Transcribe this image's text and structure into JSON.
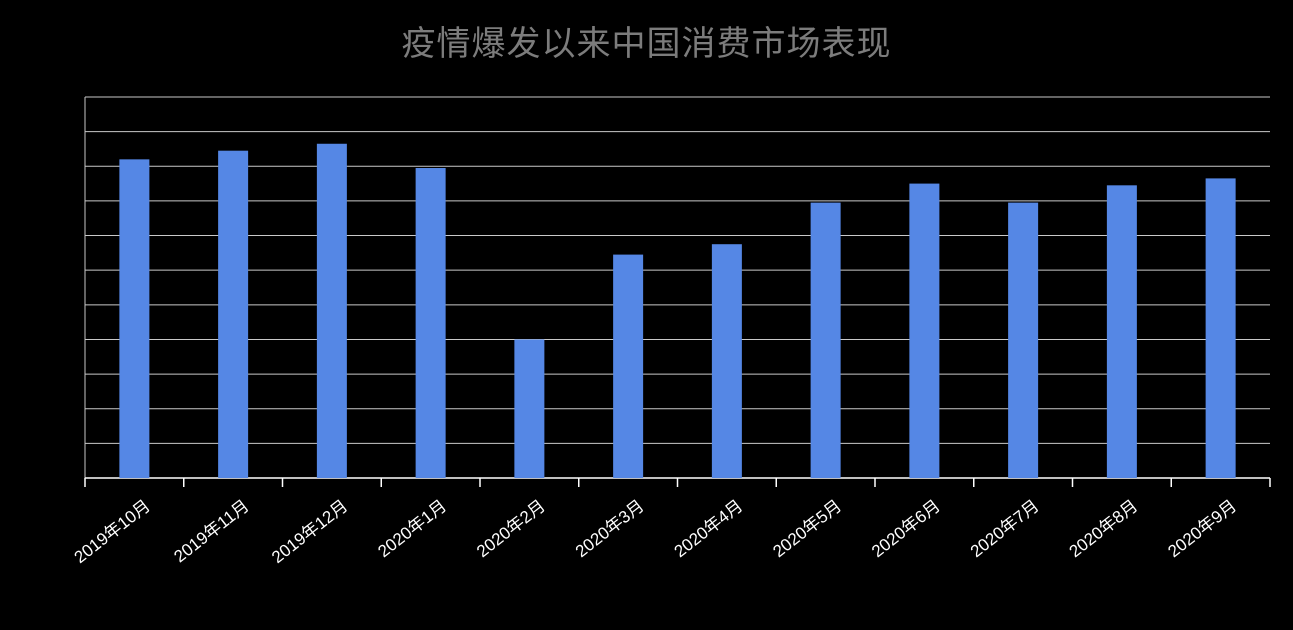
{
  "page": {
    "background": "#000000"
  },
  "chart_data": {
    "type": "bar",
    "title": "疫情爆发以来中国消费市场表现",
    "categories": [
      "2019年10月",
      "2019年11月",
      "2019年12月",
      "2020年1月",
      "2020年2月",
      "2020年3月",
      "2020年4月",
      "2020年5月",
      "2020年6月",
      "2020年7月",
      "2020年8月",
      "2020年9月"
    ],
    "values": [
      9.2,
      9.45,
      9.65,
      8.95,
      4.0,
      6.45,
      6.75,
      7.95,
      8.5,
      7.95,
      8.45,
      8.65
    ],
    "value_note": "y-axis tick labels not visible in image; values estimated in horizontal-gridline units from the plot",
    "ylim": [
      0,
      11
    ],
    "gridline_count": 11,
    "legend": "none",
    "x_label_rotation_deg": -38,
    "colors": {
      "bar": "#5587E5",
      "gridline": "#C9C9C9",
      "axis": "#FFFFFF",
      "x_tick_label": "#FFFFFF",
      "title": "#7C7C7C",
      "background": "#000000"
    }
  }
}
